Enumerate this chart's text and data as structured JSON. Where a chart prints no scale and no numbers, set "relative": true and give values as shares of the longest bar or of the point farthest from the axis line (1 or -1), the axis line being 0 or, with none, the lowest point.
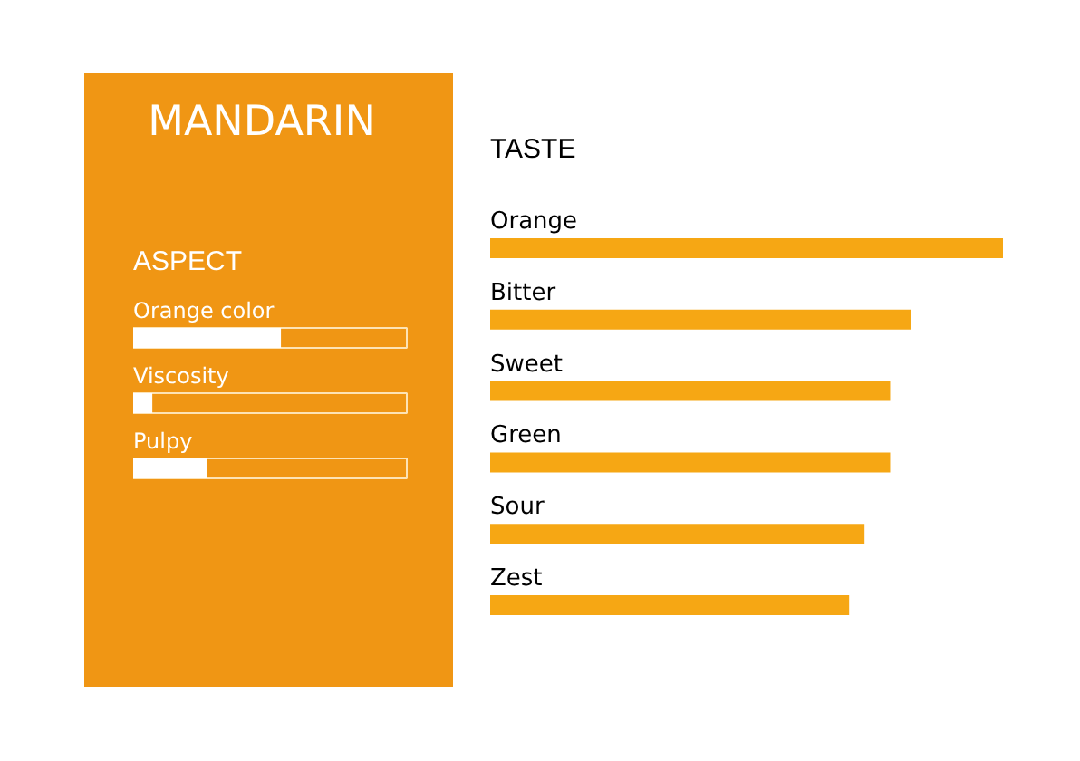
{
  "chart_data": [
    {
      "type": "bar",
      "orientation": "horizontal",
      "relative": true,
      "title": "MANDARIN",
      "subtitle": "ASPECT",
      "categories": [
        "Orange color",
        "Viscosity",
        "Pulpy"
      ],
      "series": [
        {
          "color": "#fde3b5",
          "values": [
            1,
            1,
            1
          ]
        },
        {
          "color": "#ffffff",
          "values": [
            0.54,
            0.07,
            0.27
          ]
        }
      ]
    },
    {
      "type": "bar",
      "orientation": "horizontal",
      "relative": true,
      "title": "TASTE",
      "categories": [
        "Orange",
        "Bitter",
        "Sweet",
        "Green",
        "Sour",
        "Zest"
      ],
      "values": [
        1,
        0.82,
        0.78,
        0.78,
        0.73,
        0.7
      ],
      "color": "#f6a714"
    }
  ]
}
